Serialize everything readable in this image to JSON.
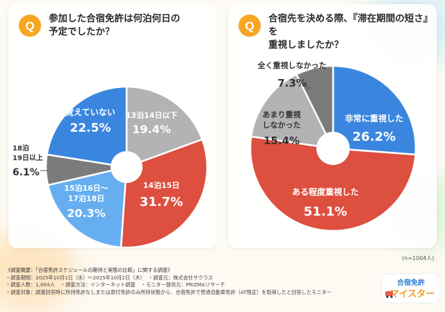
{
  "colors": {
    "blue": "#3a86de",
    "light_blue": "#66aef0",
    "gray": "#8f8f8f",
    "dark_gray": "#7b7b7b",
    "light_gray": "#b3b3b3",
    "red": "#dd4f3f"
  },
  "n_note": "(n=1004人)",
  "chart_data": [
    {
      "type": "pie",
      "title_lines": [
        "参加した合宿免許は何泊何日の",
        "予定でしたか？"
      ],
      "slices": [
        {
          "label_lines": [
            "13泊14日以下"
          ],
          "value": 19.4,
          "value_label": "19.4%",
          "color": "#b3b3b3"
        },
        {
          "label_lines": [
            "14泊15日"
          ],
          "value": 31.7,
          "value_label": "31.7%",
          "color": "#dd4f3f"
        },
        {
          "label_lines": [
            "15泊16日～",
            "17泊18日"
          ],
          "value": 20.3,
          "value_label": "20.3%",
          "color": "#66aef0"
        },
        {
          "label_lines": [
            "18泊",
            "19日以上"
          ],
          "value": 6.1,
          "value_label": "6.1%",
          "color": "#7b7b7b"
        },
        {
          "label_lines": [
            "覚えていない"
          ],
          "value": 22.5,
          "value_label": "22.5%",
          "color": "#3a86de"
        }
      ]
    },
    {
      "type": "pie",
      "title_lines": [
        "合宿先を決める際、『滞在期間の短さ』を",
        "重視しましたか？"
      ],
      "slices": [
        {
          "label_lines": [
            "非常に重視した"
          ],
          "value": 26.2,
          "value_label": "26.2%",
          "color": "#3a86de"
        },
        {
          "label_lines": [
            "ある程度重視した"
          ],
          "value": 51.1,
          "value_label": "51.1%",
          "color": "#dd4f3f"
        },
        {
          "label_lines": [
            "あまり重視",
            "しなかった"
          ],
          "value": 15.4,
          "value_label": "15.4%",
          "color": "#b3b3b3"
        },
        {
          "label_lines": [
            "全く重視しなかった"
          ],
          "value": 7.3,
          "value_label": "7.3%",
          "color": "#7b7b7b"
        }
      ]
    }
  ],
  "footer": {
    "title": "《調査概要：「合宿免許スケジュールの期待と実態の比較」に関する調査》",
    "rows": [
      [
        "・調査期間：2025年10月1日（水）～2025年10月2日（木）",
        "・調査元：株式会社サクラス"
      ],
      [
        "・調査人数：1,004人",
        "・調査方法：インターネット調査",
        "・モニター提供元：PRIZMAリサーチ"
      ],
      [
        "・調査対象：調査回答時に所持免許なしまたは原付免許のみ所持状態から、合宿免許で普通自動車免許（AT限定）を取得したと回答したモニター"
      ]
    ]
  },
  "logo": {
    "line1": "合宿免許",
    "line2": "マイスター"
  }
}
